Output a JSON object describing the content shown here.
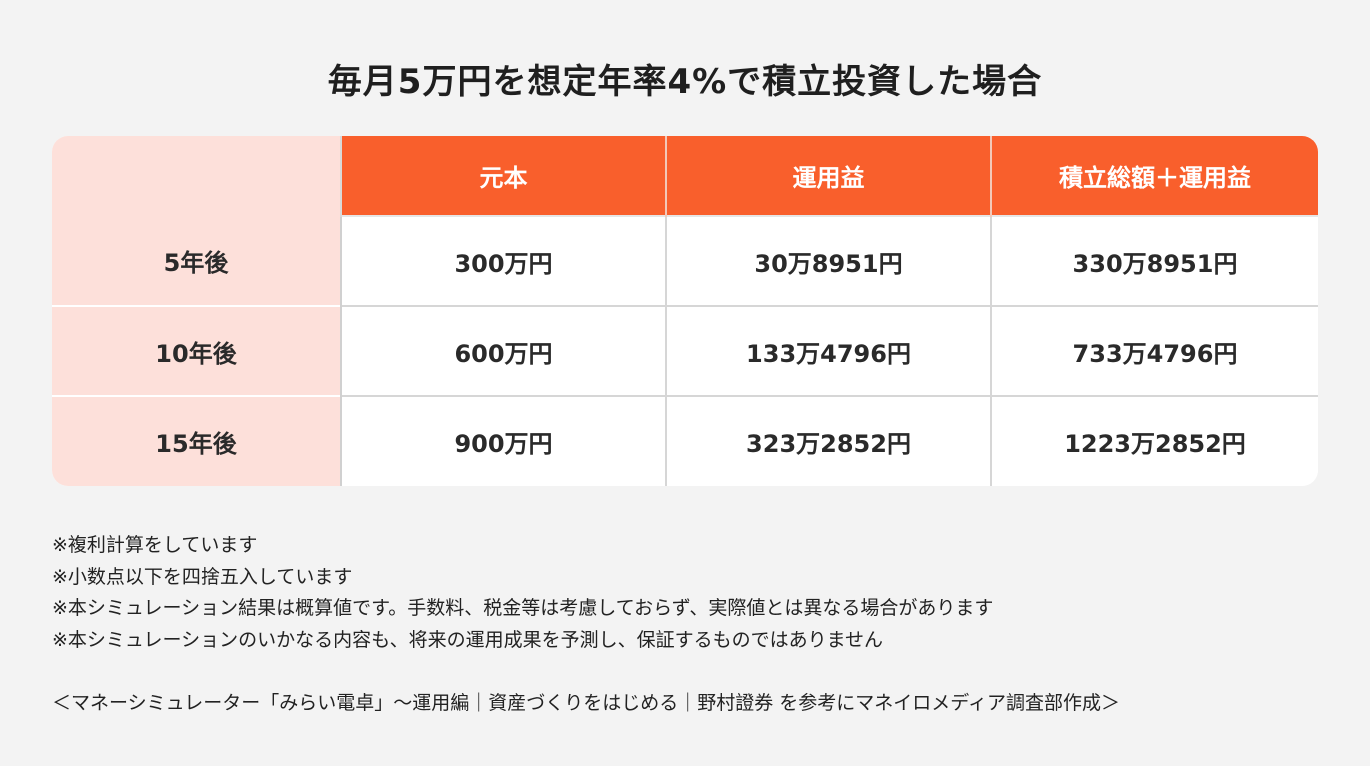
{
  "title": "毎月5万円を想定年率4%で積立投資した場合",
  "table": {
    "headers": [
      "",
      "元本",
      "運用益",
      "積立総額＋運用益"
    ],
    "rows": [
      {
        "label": "5年後",
        "cells": [
          "300万円",
          "30万8951円",
          "330万8951円"
        ]
      },
      {
        "label": "10年後",
        "cells": [
          "600万円",
          "133万4796円",
          "733万4796円"
        ]
      },
      {
        "label": "15年後",
        "cells": [
          "900万円",
          "323万2852円",
          "1223万2852円"
        ]
      }
    ]
  },
  "notes": [
    "※複利計算をしています",
    "※小数点以下を四捨五入しています",
    "※本シミュレーション結果は概算値です。手数料、税金等は考慮しておらず、実際値とは異なる場合があります",
    "※本シミュレーションのいかなる内容も、将来の運用成果を予測し、保証するものではありません"
  ],
  "source": "＜マネーシミュレーター「みらい電卓」〜運用編｜資産づくりをはじめる｜野村證券 を参考にマネイロメディア調査部作成＞",
  "colors": {
    "accent": "#f95f2c",
    "row_label_bg": "#fde0da",
    "page_bg": "#f3f3f3"
  }
}
